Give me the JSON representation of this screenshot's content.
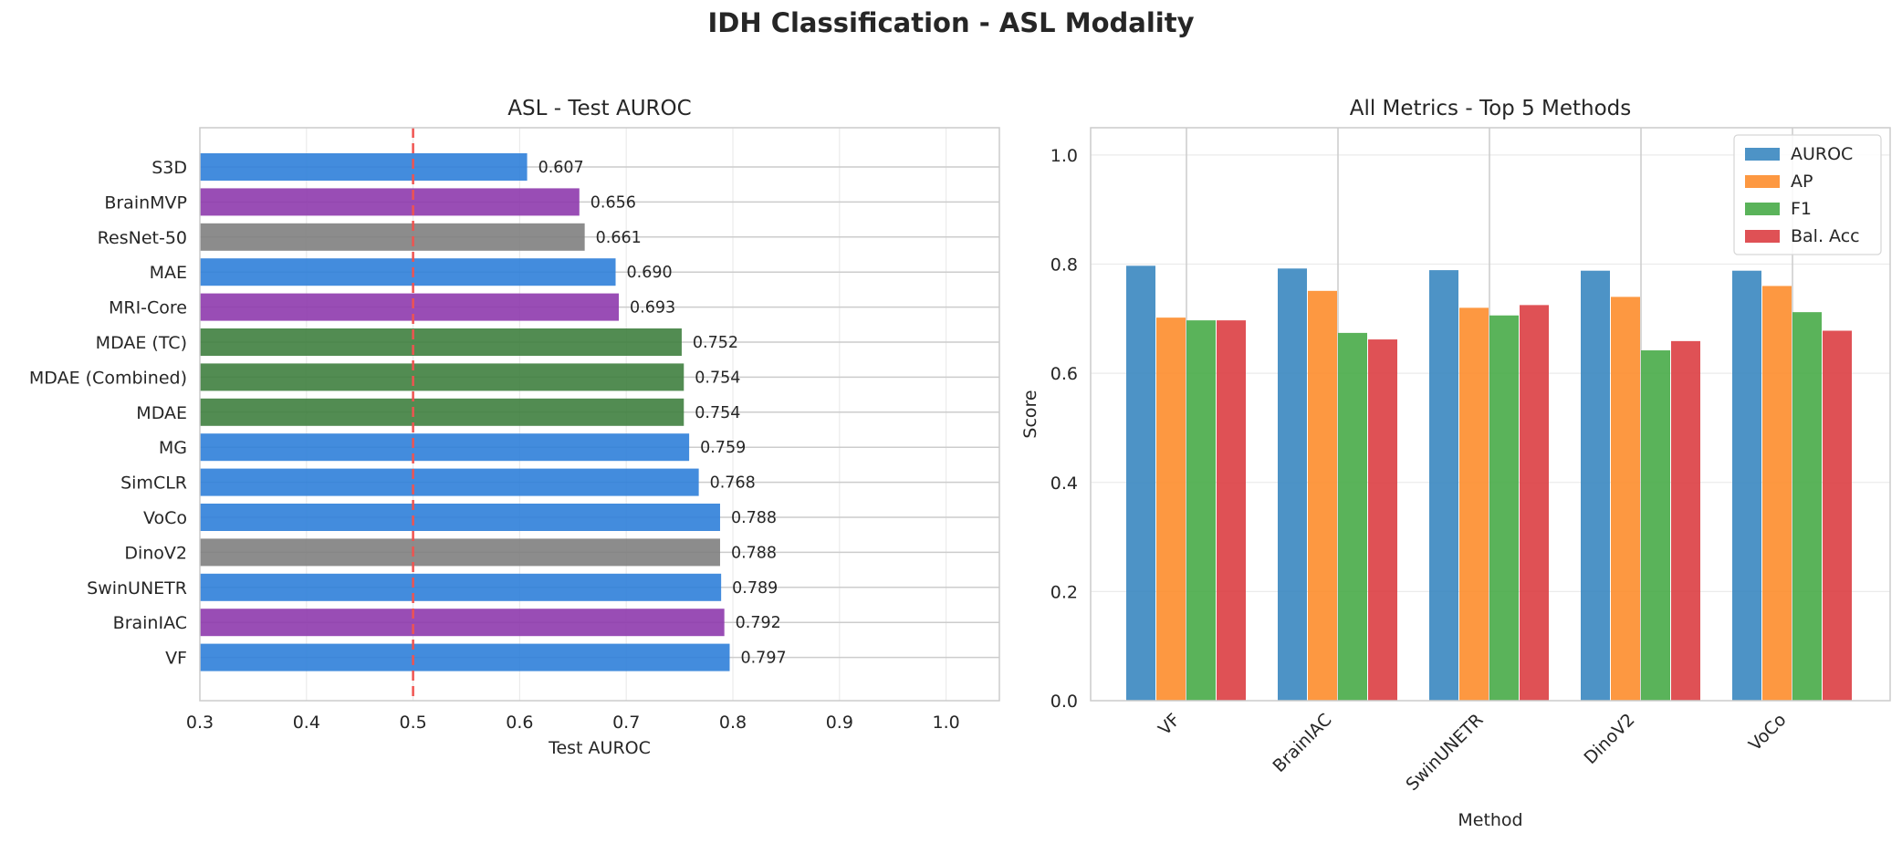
{
  "figure": {
    "suptitle": "IDH Classification - ASL Modality"
  },
  "chart_data": [
    {
      "type": "bar",
      "orientation": "horizontal",
      "title": "ASL - Test AUROC",
      "xlabel": "Test AUROC",
      "ylabel": "",
      "xlim": [
        0.3,
        1.05
      ],
      "xticks": [
        "0.3",
        "0.4",
        "0.5",
        "0.6",
        "0.7",
        "0.8",
        "0.9",
        "1.0"
      ],
      "grid": true,
      "reference_line": {
        "x": 0.5,
        "color": "#ef5350",
        "style": "dashed"
      },
      "categories": [
        "S3D",
        "BrainMVP",
        "ResNet-50",
        "MAE",
        "MRI-Core",
        "MDAE (TC)",
        "MDAE (Combined)",
        "MDAE",
        "MG",
        "SimCLR",
        "VoCo",
        "DinoV2",
        "SwinUNETR",
        "BrainIAC",
        "VF"
      ],
      "values": [
        0.607,
        0.656,
        0.661,
        0.69,
        0.693,
        0.752,
        0.754,
        0.754,
        0.759,
        0.768,
        0.788,
        0.788,
        0.789,
        0.792,
        0.797
      ],
      "value_labels": [
        "0.607",
        "0.656",
        "0.661",
        "0.690",
        "0.693",
        "0.752",
        "0.754",
        "0.754",
        "0.759",
        "0.768",
        "0.788",
        "0.788",
        "0.789",
        "0.792",
        "0.797"
      ],
      "bar_colors": [
        "#2f80d9",
        "#8e3aad",
        "#808080",
        "#2f80d9",
        "#8e3aad",
        "#3f7f3f",
        "#3f7f3f",
        "#3f7f3f",
        "#2f80d9",
        "#2f80d9",
        "#2f80d9",
        "#808080",
        "#2f80d9",
        "#8e3aad",
        "#2f80d9"
      ]
    },
    {
      "type": "bar",
      "orientation": "vertical",
      "title": "All Metrics - Top 5 Methods",
      "xlabel": "Method",
      "ylabel": "Score",
      "ylim": [
        0,
        1.05
      ],
      "yticks": [
        "0.0",
        "0.2",
        "0.4",
        "0.6",
        "0.8",
        "1.0"
      ],
      "grid": true,
      "legend_position": "top-right",
      "categories": [
        "VF",
        "BrainIAC",
        "SwinUNETR",
        "DinoV2",
        "VoCo"
      ],
      "series": [
        {
          "name": "AUROC",
          "color": "#3a87c0",
          "values": [
            0.797,
            0.792,
            0.789,
            0.788,
            0.788
          ]
        },
        {
          "name": "AP",
          "color": "#fd8d2c",
          "values": [
            0.702,
            0.751,
            0.72,
            0.74,
            0.76
          ]
        },
        {
          "name": "F1",
          "color": "#48ab48",
          "values": [
            0.697,
            0.674,
            0.706,
            0.642,
            0.712
          ]
        },
        {
          "name": "Bal. Acc",
          "color": "#dc3e43",
          "values": [
            0.697,
            0.662,
            0.725,
            0.659,
            0.678
          ]
        }
      ]
    }
  ]
}
